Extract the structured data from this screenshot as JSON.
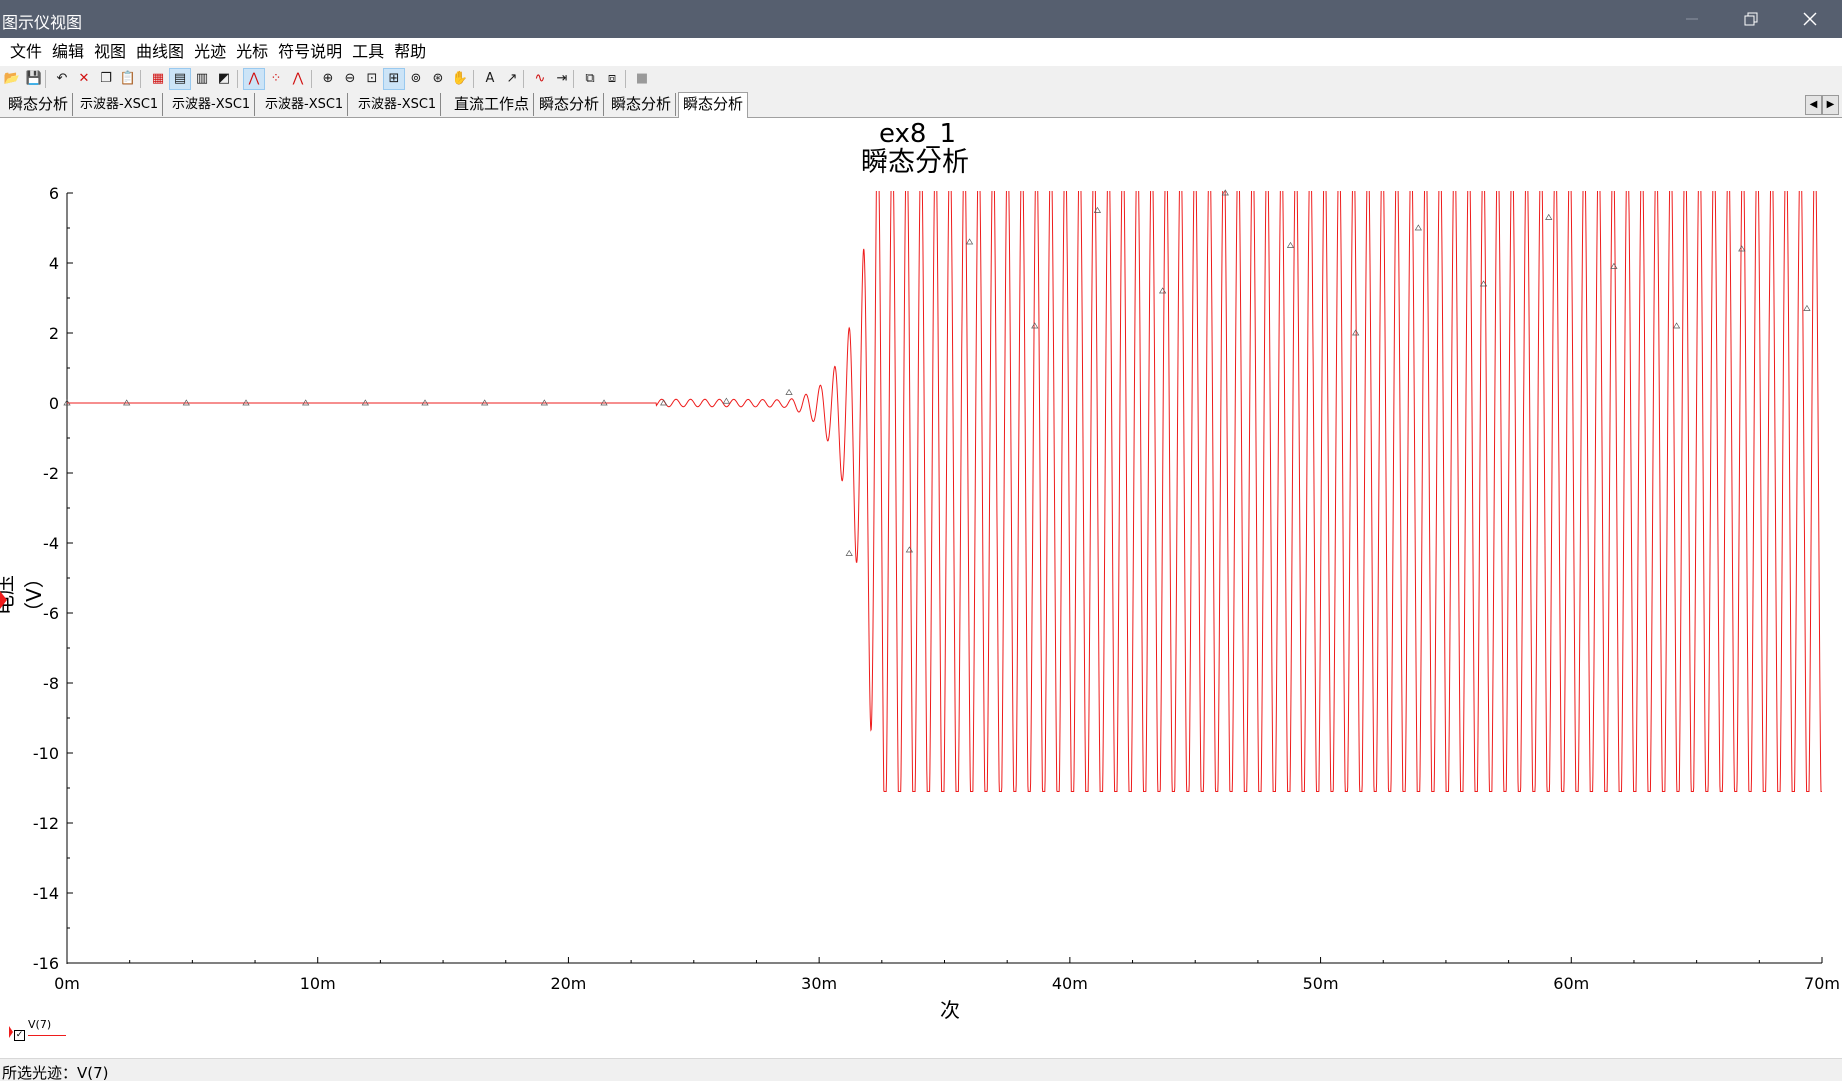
{
  "window": {
    "title": "图示仪视图"
  },
  "menu": [
    "文件",
    "编辑",
    "视图",
    "曲线图",
    "光迹",
    "光标",
    "符号说明",
    "工具",
    "帮助"
  ],
  "toolbar": {
    "icons": [
      "open-icon",
      "save-icon",
      "undo-icon",
      "cut-icon",
      "copy-icon",
      "paste-icon",
      "grid-icon",
      "legend-icon",
      "select-marks-icon",
      "overlay-traces-icon",
      "show-lines-icon",
      "show-points-icon",
      "show-lines-points-icon",
      "zoom-in-icon",
      "zoom-out-icon",
      "zoom-area-icon",
      "zoom-full-icon",
      "zoom-x-icon",
      "zoom-y-icon",
      "pan-icon",
      "text-icon",
      "label-icon",
      "add-trace-icon",
      "export-icon",
      "copy-graph-icon",
      "paste-graph-icon",
      "stop-icon"
    ]
  },
  "tabs": [
    {
      "label": "瞬态分析",
      "small": false
    },
    {
      "label": "示波器-XSC1",
      "small": true
    },
    {
      "label": "示波器-XSC1",
      "small": true
    },
    {
      "label": "示波器-XSC1",
      "small": true
    },
    {
      "label": "示波器-XSC1",
      "small": true
    },
    {
      "label": "直流工作点",
      "small": false
    },
    {
      "label": "瞬态分析",
      "small": false
    },
    {
      "label": "瞬态分析",
      "small": false
    },
    {
      "label": "瞬态分析",
      "small": false,
      "active": true
    }
  ],
  "graph": {
    "title": "ex8_1",
    "subtitle": "瞬态分析"
  },
  "chart_data": {
    "type": "line",
    "title": "ex8_1",
    "subtitle": "瞬态分析",
    "xlabel": "次",
    "ylabel": "电压（V）",
    "xlim": [
      0,
      70
    ],
    "ylim": [
      -16,
      6
    ],
    "x_unit": "m",
    "x_ticks": [
      "0m",
      "10m",
      "20m",
      "30m",
      "40m",
      "50m",
      "60m",
      "70m"
    ],
    "y_ticks": [
      "6",
      "4",
      "2",
      "0",
      "-2",
      "-4",
      "-6",
      "-8",
      "-10",
      "-12",
      "-14",
      "-16"
    ],
    "grid": false,
    "series": [
      {
        "name": "V(7)",
        "color": "#ee1c1c",
        "description_points": {
          "flat_until": 26,
          "flat_value": 0,
          "growth_start": 26,
          "growth_end": 32.3,
          "steady_max": 6.0,
          "steady_min": -11.1,
          "period": 0.575
        }
      }
    ]
  },
  "legend": {
    "label": "V(7)",
    "checked": true
  },
  "statusbar": {
    "text": "所选光迹：V(7)"
  }
}
